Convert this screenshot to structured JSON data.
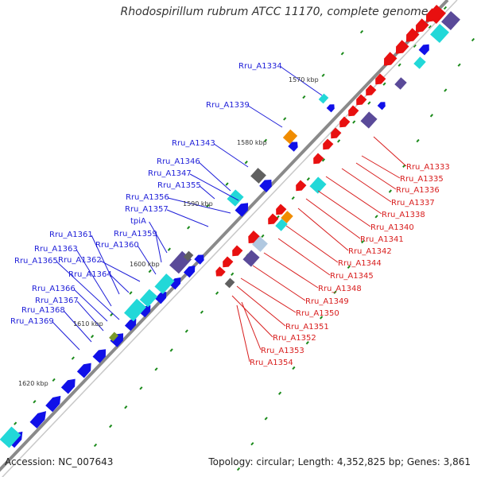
{
  "title": "Rhodospirillum rubrum ATCC 11170, complete genome",
  "footer": {
    "accession": "Accession: NC_007643",
    "stats": "Topology: circular; Length: 4,352,825 bp; Genes: 3,861"
  },
  "colors": {
    "forward_strand": "#1010e8",
    "reverse_strand": "#e81010",
    "highlight_cyan": "#22d8d8",
    "highlight_purple": "#5a4a99",
    "rna_orange": "#f08c00",
    "pseudo_gray": "#606060",
    "backbone": "#8a8a8a",
    "tick": "#1a8a1a"
  },
  "kbp_ticks": [
    "1570 kbp",
    "1580 kbp",
    "1590 kbp",
    "1600 kbp",
    "1610 kbp",
    "1620 kbp"
  ],
  "left_labels": [
    "Rru_A1334",
    "Rru_A1339",
    "Rru_A1343",
    "Rru_A1346",
    "Rru_A1347",
    "Rru_A1355",
    "Rru_A1356",
    "Rru_A1357",
    "tpiA",
    "Rru_A1359",
    "Rru_A1360",
    "Rru_A1361",
    "Rru_A1362",
    "Rru_A1363",
    "Rru_A1364",
    "Rru_A1365",
    "Rru_A1366",
    "Rru_A1367",
    "Rru_A1368",
    "Rru_A1369"
  ],
  "right_labels": [
    "Rru_A1333",
    "Rru_A1335",
    "Rru_A1336",
    "Rru_A1337",
    "Rru_A1338",
    "Rru_A1340",
    "Rru_A1341",
    "Rru_A1342",
    "Rru_A1344",
    "Rru_A1345",
    "Rru_A1348",
    "Rru_A1349",
    "Rru_A1350",
    "Rru_A1351",
    "Rru_A1352",
    "Rru_A1353",
    "Rru_A1354"
  ]
}
